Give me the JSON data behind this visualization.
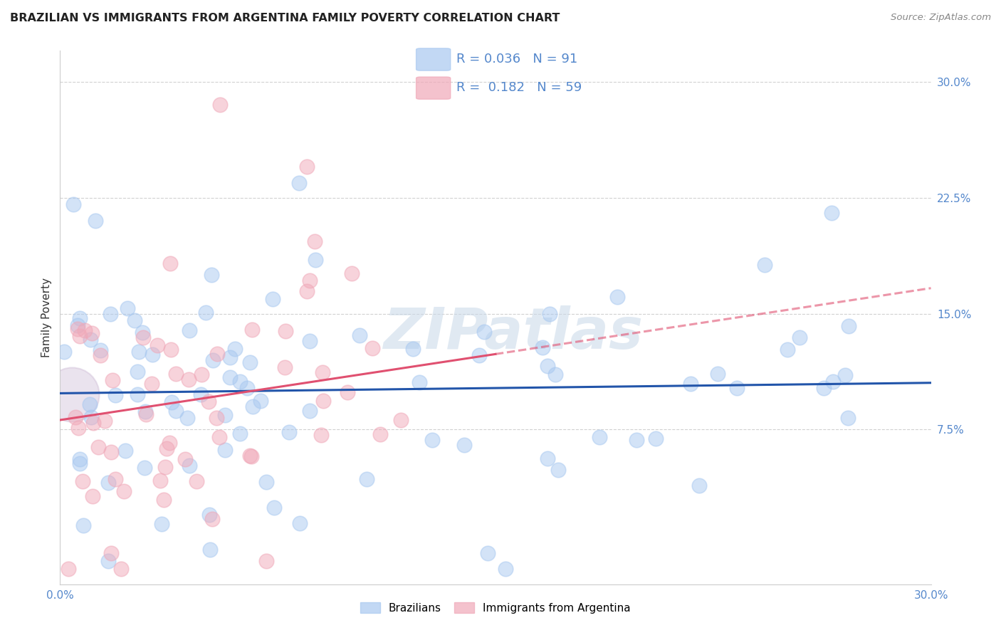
{
  "title": "BRAZILIAN VS IMMIGRANTS FROM ARGENTINA FAMILY POVERTY CORRELATION CHART",
  "source": "Source: ZipAtlas.com",
  "ylabel": "Family Poverty",
  "xmin": 0.0,
  "xmax": 0.3,
  "ymin": -0.025,
  "ymax": 0.32,
  "brazil_color": "#A8C8F0",
  "brazil_edge_color": "#A8C8F0",
  "argentina_color": "#F0A8B8",
  "argentina_edge_color": "#F0A8B8",
  "brazil_line_color": "#2255AA",
  "argentina_line_color": "#E05070",
  "brazil_R": 0.036,
  "brazil_N": 91,
  "argentina_R": 0.182,
  "argentina_N": 59,
  "legend_label_brazil": "Brazilians",
  "legend_label_argentina": "Immigrants from Argentina",
  "watermark": "ZIPatlas",
  "tick_color": "#5588CC",
  "title_color": "#222222",
  "source_color": "#888888",
  "grid_color": "#cccccc",
  "yticks": [
    0.075,
    0.15,
    0.225,
    0.3
  ],
  "ytick_labels": [
    "7.5%",
    "15.0%",
    "22.5%",
    "30.0%"
  ],
  "xtick_labels_show": [
    "0.0%",
    "30.0%"
  ],
  "dot_size": 220,
  "dot_alpha": 0.5,
  "line_width": 2.2,
  "big_bubble_size": 3000
}
